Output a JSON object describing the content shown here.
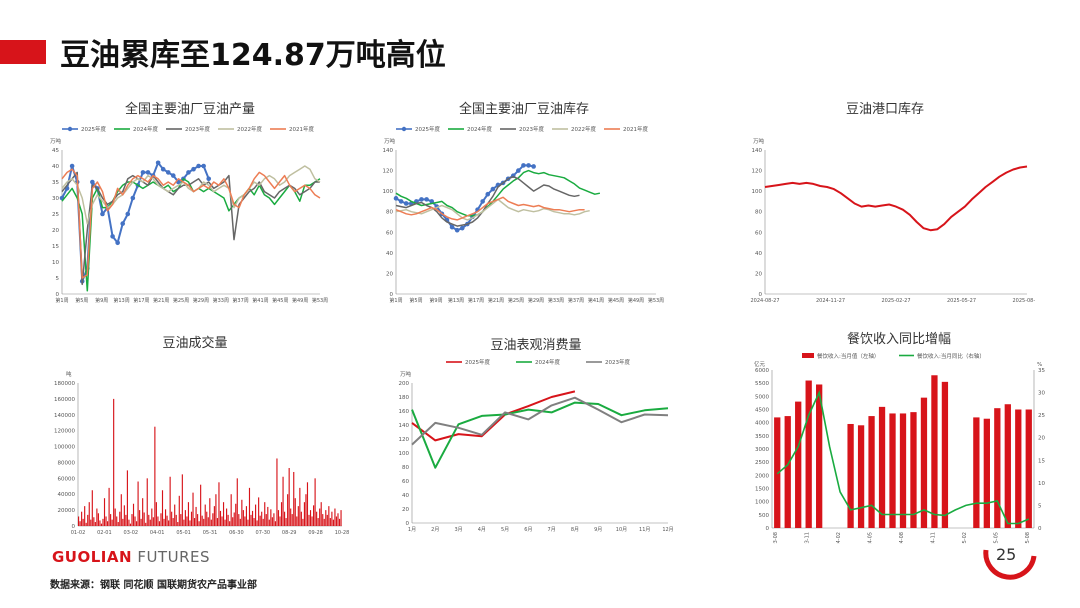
{
  "page": {
    "title": "豆油累库至124.87万吨高位",
    "logo_brand": "GUOLIAN",
    "logo_word": "FUTURES",
    "source": "数据来源：钢联  同花顺  国联期货农产品事业部",
    "page_number": "25",
    "accent": "#d7141a"
  },
  "charts": [
    {
      "id": "production",
      "title": "全国主要油厂豆油产量",
      "unit": "万吨",
      "type": "line",
      "ylim": [
        0,
        45
      ],
      "yticks": [
        0,
        5,
        10,
        15,
        20,
        25,
        30,
        35,
        40,
        45
      ],
      "xticks": [
        "第1周",
        "第5周",
        "第9周",
        "第13周",
        "第17周",
        "第21周",
        "第25周",
        "第29周",
        "第33周",
        "第37周",
        "第41周",
        "第45周",
        "第49周",
        "第53周"
      ],
      "series": [
        {
          "name": "2025年度",
          "color": "#4472c4",
          "marker": true,
          "width": 2,
          "values": [
            30,
            33,
            40,
            35,
            4,
            8,
            35,
            33,
            25,
            27,
            18,
            16,
            22,
            25,
            30,
            34,
            38,
            38,
            37,
            41,
            39,
            38,
            37,
            35,
            36,
            38,
            39,
            40,
            40,
            36
          ]
        },
        {
          "name": "2024年度",
          "color": "#1aab40",
          "marker": false,
          "width": 1.5,
          "values": [
            29,
            31,
            33,
            30,
            25,
            1,
            30,
            33,
            27,
            27,
            29,
            32,
            34,
            35,
            35,
            34,
            33,
            34,
            35,
            34,
            33,
            34,
            32,
            33,
            36,
            35,
            32,
            33,
            32,
            33,
            32,
            31,
            30,
            26,
            28,
            30,
            31,
            33,
            31,
            34,
            31,
            30,
            28,
            30,
            32,
            34,
            32,
            29,
            34,
            34,
            35,
            36
          ]
        },
        {
          "name": "2023年度",
          "color": "#666666",
          "marker": false,
          "width": 1.5,
          "values": [
            32,
            34,
            36,
            38,
            3,
            20,
            34,
            33,
            30,
            28,
            29,
            31,
            32,
            36,
            37,
            36,
            35,
            34,
            37,
            35,
            33,
            32,
            31,
            33,
            34,
            34,
            35,
            36,
            34,
            35,
            33,
            34,
            35,
            37,
            17,
            28,
            30,
            32,
            33,
            35,
            32,
            31,
            30,
            32,
            33,
            34,
            33,
            31,
            32,
            33,
            35,
            35
          ]
        },
        {
          "name": "2022年度",
          "color": "#bfbfa0",
          "marker": false,
          "width": 1.5,
          "values": [
            33,
            35,
            36,
            34,
            30,
            22,
            28,
            31,
            29,
            27,
            28,
            30,
            31,
            33,
            35,
            36,
            35,
            37,
            36,
            34,
            33,
            32,
            33,
            34,
            35,
            33,
            32,
            33,
            35,
            34,
            32,
            33,
            34,
            33,
            27,
            30,
            31,
            33,
            35,
            34,
            36,
            37,
            36,
            34,
            35,
            37,
            38,
            39,
            40,
            39,
            36,
            35
          ]
        },
        {
          "name": "2021年度",
          "color": "#ed7d54",
          "marker": false,
          "width": 1.5,
          "values": [
            36,
            38,
            39,
            37,
            5,
            6,
            33,
            35,
            32,
            26,
            28,
            33,
            31,
            34,
            36,
            37,
            36,
            35,
            37,
            36,
            34,
            35,
            34,
            36,
            35,
            34,
            32,
            33,
            34,
            33,
            35,
            34,
            36,
            33,
            28,
            27,
            31,
            33,
            36,
            38,
            37,
            35,
            33,
            35,
            37,
            34,
            32,
            33,
            34,
            33,
            31,
            30
          ]
        }
      ]
    },
    {
      "id": "inventory",
      "title": "全国主要油厂豆油库存",
      "unit": "万吨",
      "type": "line",
      "ylim": [
        0,
        140
      ],
      "yticks": [
        0,
        20,
        40,
        60,
        80,
        100,
        120,
        140
      ],
      "xticks": [
        "第1周",
        "第5周",
        "第9周",
        "第13周",
        "第17周",
        "第21周",
        "第25周",
        "第29周",
        "第33周",
        "第37周",
        "第41周",
        "第45周",
        "第49周",
        "第53周"
      ],
      "series": [
        {
          "name": "2025年度",
          "color": "#4472c4",
          "marker": true,
          "width": 2,
          "values": [
            93,
            90,
            88,
            88,
            90,
            92,
            92,
            90,
            85,
            78,
            72,
            65,
            62,
            64,
            68,
            75,
            82,
            90,
            97,
            102,
            106,
            108,
            112,
            115,
            120,
            125,
            125,
            124
          ]
        },
        {
          "name": "2024年度",
          "color": "#1aab40",
          "marker": false,
          "width": 1.5,
          "values": [
            98,
            95,
            93,
            90,
            88,
            86,
            87,
            88,
            89,
            90,
            86,
            84,
            80,
            78,
            76,
            76,
            77,
            80,
            85,
            90,
            96,
            102,
            106,
            110,
            113,
            118,
            120,
            118,
            117,
            118,
            116,
            115,
            114,
            113,
            110,
            107,
            103,
            101,
            99,
            97,
            98
          ]
        },
        {
          "name": "2023年度",
          "color": "#666666",
          "marker": false,
          "width": 1.5,
          "values": [
            86,
            85,
            84,
            86,
            88,
            89,
            86,
            84,
            80,
            74,
            70,
            68,
            66,
            67,
            68,
            70,
            74,
            80,
            88,
            95,
            104,
            108,
            112,
            114,
            112,
            108,
            104,
            100,
            103,
            106,
            105,
            102,
            100,
            98,
            96,
            95,
            96
          ]
        },
        {
          "name": "2022年度",
          "color": "#bfbfa0",
          "marker": false,
          "width": 1.5,
          "values": [
            80,
            81,
            82,
            80,
            79,
            78,
            80,
            82,
            84,
            86,
            84,
            82,
            78,
            74,
            72,
            74,
            77,
            80,
            84,
            88,
            92,
            88,
            84,
            82,
            80,
            82,
            81,
            80,
            81,
            83,
            82,
            80,
            79,
            78,
            78,
            77,
            78,
            80,
            81
          ]
        },
        {
          "name": "2021年度",
          "color": "#ed7d54",
          "marker": false,
          "width": 1.5,
          "values": [
            82,
            80,
            78,
            77,
            78,
            80,
            82,
            84,
            82,
            78,
            75,
            73,
            72,
            74,
            76,
            78,
            80,
            84,
            88,
            90,
            92,
            94,
            90,
            88,
            86,
            87,
            86,
            85,
            86,
            84,
            83,
            82,
            82,
            81,
            80,
            81,
            82,
            82
          ]
        }
      ]
    },
    {
      "id": "port",
      "title": "豆油港口库存",
      "unit": "万吨",
      "type": "line",
      "ylim": [
        0,
        140
      ],
      "yticks": [
        0,
        20,
        40,
        60,
        80,
        100,
        120,
        140
      ],
      "xticks": [
        "2024-08-27",
        "2024-11-27",
        "2025-02-27",
        "2025-05-27",
        "2025-08-27"
      ],
      "series": [
        {
          "name": "",
          "color": "#d7141a",
          "marker": false,
          "width": 2,
          "values": [
            104,
            105,
            106,
            107,
            108,
            107,
            108,
            107,
            105,
            104,
            102,
            98,
            93,
            88,
            85,
            86,
            85,
            86,
            87,
            85,
            82,
            77,
            70,
            64,
            62,
            63,
            68,
            75,
            80,
            85,
            92,
            98,
            104,
            109,
            114,
            118,
            121,
            123,
            124
          ]
        }
      ]
    },
    {
      "id": "volume",
      "title": "豆油成交量",
      "unit": "吨",
      "type": "bar",
      "ylim": [
        0,
        180000
      ],
      "yticks": [
        0,
        20000,
        40000,
        60000,
        80000,
        100000,
        120000,
        140000,
        160000,
        180000
      ],
      "xticks": [
        "01-02",
        "02-01",
        "03-02",
        "04-01",
        "05-01",
        "05-31",
        "06-30",
        "07-30",
        "08-29",
        "09-28",
        "10-28"
      ],
      "color": "#d7141a",
      "values": [
        12000,
        6000,
        18000,
        9000,
        25000,
        4000,
        14000,
        30000,
        8000,
        45000,
        11000,
        5000,
        22000,
        16000,
        7000,
        3000,
        9000,
        35000,
        12000,
        6000,
        48000,
        15000,
        8000,
        160000,
        22000,
        12000,
        5000,
        18000,
        40000,
        9000,
        26000,
        14000,
        70000,
        8000,
        3000,
        15000,
        28000,
        12000,
        6000,
        56000,
        20000,
        9000,
        35000,
        17000,
        4000,
        60000,
        14000,
        8000,
        22000,
        11000,
        125000,
        30000,
        12000,
        6000,
        16000,
        45000,
        9000,
        21000,
        13000,
        7000,
        62000,
        18000,
        10000,
        27000,
        14000,
        5000,
        38000,
        15000,
        65000,
        8000,
        20000,
        12000,
        30000,
        7000,
        18000,
        42000,
        10000,
        24000,
        15000,
        6000,
        52000,
        13000,
        9000,
        27000,
        18000,
        11000,
        35000,
        8000,
        16000,
        25000,
        40000,
        10000,
        55000,
        19000,
        12000,
        30000,
        8000,
        22000,
        14000,
        6000,
        40000,
        11000,
        17000,
        28000,
        60000,
        15000,
        9000,
        33000,
        20000,
        12000,
        25000,
        8000,
        48000,
        14000,
        19000,
        10000,
        27000,
        7000,
        36000,
        13000,
        18000,
        9000,
        30000,
        15000,
        24000,
        8000,
        21000,
        11000,
        16000,
        6000,
        85000,
        20000,
        12000,
        30000,
        62000,
        18000,
        10000,
        40000,
        73000,
        22000,
        15000,
        68000,
        35000,
        12000,
        25000,
        48000,
        18000,
        9000,
        30000,
        40000,
        55000,
        14000,
        20000,
        12000,
        26000,
        60000,
        18000,
        10000,
        22000,
        30000,
        15000,
        9000,
        20000,
        14000,
        25000,
        10000,
        18000,
        8000,
        22000,
        12000,
        16000,
        9000,
        20000
      ]
    },
    {
      "id": "consumption",
      "title": "豆油表观消费量",
      "unit": "万吨",
      "type": "line",
      "ylim": [
        0,
        200
      ],
      "yticks": [
        0,
        20,
        40,
        60,
        80,
        100,
        120,
        140,
        160,
        180,
        200
      ],
      "xticks": [
        "1月",
        "2月",
        "3月",
        "4月",
        "5月",
        "6月",
        "7月",
        "8月",
        "9月",
        "10月",
        "11月",
        "12月"
      ],
      "series": [
        {
          "name": "2025年度",
          "color": "#d7141a",
          "marker": false,
          "width": 2,
          "values": [
            143,
            118,
            127,
            124,
            155,
            167,
            180,
            188
          ]
        },
        {
          "name": "2024年度",
          "color": "#1aab40",
          "marker": false,
          "width": 2,
          "values": [
            162,
            79,
            141,
            153,
            155,
            162,
            158,
            172,
            170,
            154,
            161,
            164
          ]
        },
        {
          "name": "2023年度",
          "color": "#808080",
          "marker": false,
          "width": 2,
          "values": [
            112,
            143,
            136,
            126,
            158,
            148,
            168,
            179,
            162,
            144,
            155,
            154
          ]
        }
      ]
    },
    {
      "id": "catering",
      "title": "餐饮收入同比增幅",
      "unit_left": "亿元",
      "unit_right": "%",
      "type": "bar+line",
      "legend": [
        "餐饮收入:当月值（左轴）",
        "餐饮收入:当月同比（右轴）"
      ],
      "ylim_left": [
        0,
        6000
      ],
      "yticks_left": [
        0,
        500,
        1000,
        1500,
        2000,
        2500,
        3000,
        3500,
        4000,
        4500,
        5000,
        5500,
        6000
      ],
      "ylim_right": [
        0,
        35
      ],
      "yticks_right": [
        0,
        5,
        10,
        15,
        20,
        25,
        30,
        35
      ],
      "xticks": [
        "2023-08",
        "2023-11",
        "2024-02",
        "2024-05",
        "2024-08",
        "2024-11",
        "2025-02",
        "2025-05",
        "2025-08"
      ],
      "bar_color": "#d7141a",
      "line_color": "#1aab40",
      "bars": [
        4200,
        4250,
        4800,
        5600,
        5450,
        null,
        null,
        3950,
        3900,
        4250,
        4600,
        4350,
        4350,
        4400,
        4950,
        5800,
        5550,
        null,
        null,
        4200,
        4150,
        4550,
        4700,
        4500,
        4500
      ],
      "line": [
        12,
        14,
        18,
        25,
        30,
        18,
        8,
        4,
        4.5,
        5,
        3,
        3,
        3,
        3,
        4,
        3,
        2.8,
        4,
        5,
        5.5,
        5.5,
        6,
        1,
        1,
        2
      ]
    }
  ]
}
